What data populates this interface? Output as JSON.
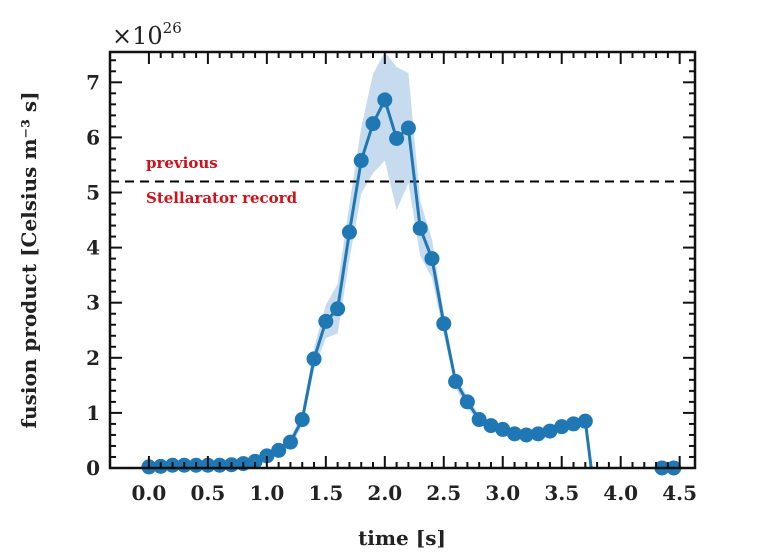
{
  "chart_data": {
    "type": "line",
    "title": "",
    "xlabel": "time [s]",
    "ylabel": "fusion product [Celsius m⁻³ s]",
    "y_multiplier": "×10",
    "y_multiplier_exp": "26",
    "xlim": [
      -0.33,
      4.63
    ],
    "ylim": [
      0,
      7.55
    ],
    "xticks": [
      "0.0",
      "0.5",
      "1.0",
      "1.5",
      "2.0",
      "2.5",
      "3.0",
      "3.5",
      "4.0",
      "4.5"
    ],
    "yticks": [
      "0",
      "1",
      "2",
      "3",
      "4",
      "5",
      "6",
      "7"
    ],
    "grid": false,
    "series": [
      {
        "name": "fusion product",
        "color": "#1f77b4",
        "band_color": "#c6dcee",
        "x": [
          0.0,
          0.1,
          0.2,
          0.3,
          0.4,
          0.5,
          0.6,
          0.7,
          0.8,
          0.9,
          1.0,
          1.1,
          1.2,
          1.3,
          1.4,
          1.5,
          1.6,
          1.7,
          1.8,
          1.9,
          2.0,
          2.1,
          2.2,
          2.3,
          2.4,
          2.5,
          2.6,
          2.7,
          2.8,
          2.9,
          3.0,
          3.1,
          3.2,
          3.3,
          3.4,
          3.5,
          3.6,
          3.7
        ],
        "y": [
          0.02,
          0.03,
          0.05,
          0.05,
          0.05,
          0.05,
          0.05,
          0.06,
          0.08,
          0.12,
          0.22,
          0.32,
          0.47,
          0.88,
          1.98,
          2.66,
          2.89,
          4.28,
          5.58,
          6.25,
          6.68,
          5.98,
          6.17,
          4.35,
          3.8,
          2.62,
          1.57,
          1.2,
          0.88,
          0.77,
          0.7,
          0.62,
          0.6,
          0.62,
          0.67,
          0.75,
          0.8,
          0.85
        ],
        "err": [
          0.02,
          0.02,
          0.02,
          0.02,
          0.02,
          0.02,
          0.02,
          0.02,
          0.03,
          0.04,
          0.05,
          0.06,
          0.08,
          0.12,
          0.2,
          0.3,
          0.45,
          0.5,
          0.6,
          0.9,
          1.1,
          1.3,
          1.0,
          0.5,
          0.35,
          0.2,
          0.12,
          0.1,
          0.08,
          0.06,
          0.06,
          0.05,
          0.05,
          0.05,
          0.05,
          0.06,
          0.07,
          0.08
        ],
        "tail_drop": {
          "x": 3.75,
          "y": 0
        },
        "late_points": {
          "x": [
            4.35,
            4.45
          ],
          "y": [
            0.0,
            0.0
          ]
        }
      }
    ],
    "reference_line": {
      "y": 5.2,
      "style": "dashed",
      "color": "#000000"
    },
    "annotations": [
      "previous",
      "Stellarator record"
    ],
    "annotation_color": "#d0101a"
  }
}
